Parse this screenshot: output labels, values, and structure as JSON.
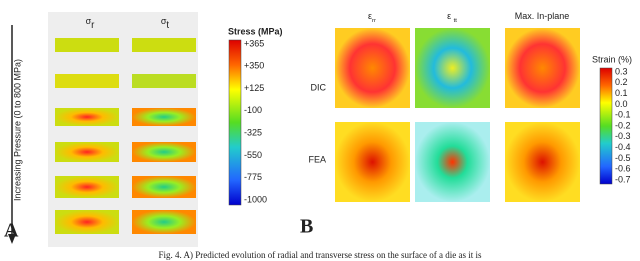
{
  "panel_a": {
    "label": "A",
    "axis_label": "Increasing Pressure (0 to 800 MPa)",
    "columns": [
      {
        "symbol": "σ",
        "subscript": "r"
      },
      {
        "symbol": "σ",
        "subscript": "t"
      }
    ],
    "colorbar": {
      "title": "Stress (MPa)",
      "labels": [
        "+365",
        "+350",
        "+125",
        "-100",
        "-325",
        "-550",
        "-775",
        "-1000"
      ]
    }
  },
  "panel_b": {
    "label": "B",
    "columns": [
      {
        "symbol": "ε",
        "subscript": "rr"
      },
      {
        "symbol": "ε ",
        "subscript": "tt"
      },
      {
        "symbol": "Max. In-plane",
        "subscript": ""
      }
    ],
    "rows": [
      "DIC",
      "FEA"
    ],
    "colorbar": {
      "title": "Strain (%)",
      "labels": [
        "0.3",
        "0.2",
        "0.1",
        "0.0",
        "-0.1",
        "-0.2",
        "-0.3",
        "-0.4",
        "-0.5",
        "-0.6",
        "-0.7"
      ]
    }
  },
  "caption": "Fig. 4. A) Predicted evolution of radial and transverse stress on the surface of a die as it is"
}
